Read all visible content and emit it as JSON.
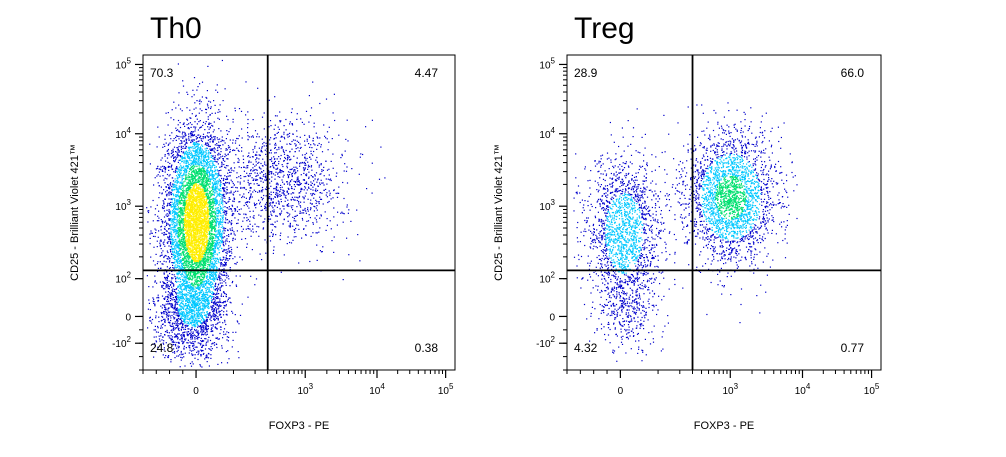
{
  "chart_data": [
    {
      "type": "scatter",
      "title": "Th0",
      "xlabel": "FOXP3 - PE",
      "ylabel": "CD25 - Brilliant Violet 421™",
      "x_scale": "biexponential",
      "y_scale": "biexponential",
      "x_ticks": [
        "0",
        "10^3",
        "10^4",
        "10^5"
      ],
      "y_ticks": [
        "-10^2",
        "0",
        "10^2",
        "10^3",
        "10^4",
        "10^5"
      ],
      "quadrant_gate": {
        "x": 300,
        "y": 130
      },
      "quadrants": {
        "top_left": "70.3",
        "top_right": "4.47",
        "bottom_left": "24.8",
        "bottom_right": "0.38"
      },
      "density_colormap": [
        "#0000cc",
        "#00c8ff",
        "#00e070",
        "#ffee00",
        "#ff0000"
      ]
    },
    {
      "type": "scatter",
      "title": "Treg",
      "xlabel": "FOXP3 - PE",
      "ylabel": "CD25 - Brilliant Violet 421™",
      "x_scale": "biexponential",
      "y_scale": "biexponential",
      "x_ticks": [
        "0",
        "10^3",
        "10^4",
        "10^5"
      ],
      "y_ticks": [
        "-10^2",
        "0",
        "10^2",
        "10^3",
        "10^4",
        "10^5"
      ],
      "quadrant_gate": {
        "x": 300,
        "y": 130
      },
      "quadrants": {
        "top_left": "28.9",
        "top_right": "66.0",
        "bottom_left": "4.32",
        "bottom_right": "0.77"
      },
      "density_colormap": [
        "#0000cc",
        "#00c8ff",
        "#00e070",
        "#ffee00",
        "#ff0000"
      ]
    }
  ]
}
